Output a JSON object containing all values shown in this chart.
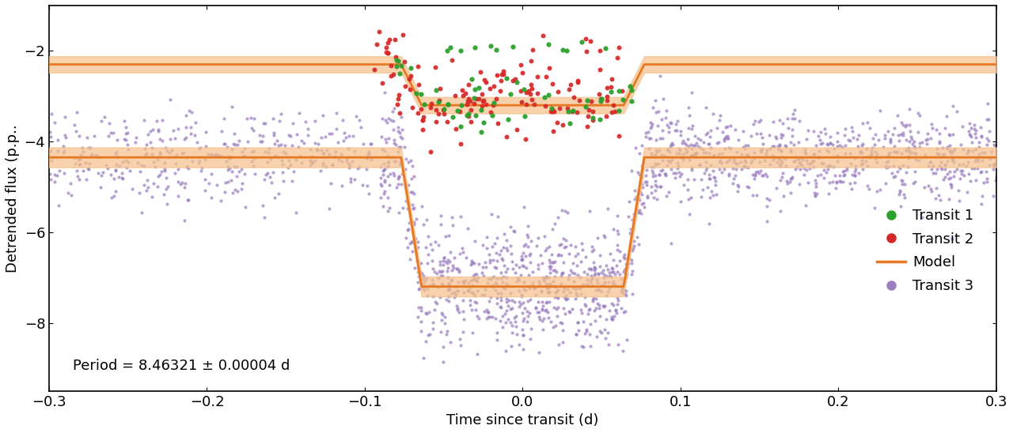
{
  "xlim": [
    -0.3,
    0.3
  ],
  "ylim": [
    -9.5,
    -1.0
  ],
  "yticks": [
    -8,
    -6,
    -4,
    -2
  ],
  "xticks": [
    -0.3,
    -0.2,
    -0.1,
    0.0,
    0.1,
    0.2,
    0.3
  ],
  "xlabel": "Time since transit (d)",
  "ylabel": "Detrended flux (p.p.",
  "period_text": "Period = 8.46321 ± 0.00004 d",
  "spitzer_depth": -7.2,
  "spitzer_out": -4.35,
  "tess_depth": -3.2,
  "tess_out": -2.3,
  "transit_half_duration": 0.077,
  "transit_ingress_duration": 0.013,
  "model_color": "#E87722",
  "model_fill_color": "#F5C08A",
  "transit1_color": "#2ca02c",
  "transit2_color": "#d62728",
  "transit3_color": "#9B7FBF",
  "legend_labels": [
    "Transit 1",
    "Transit 2",
    "Model",
    "Transit 3"
  ],
  "font_size": 13
}
